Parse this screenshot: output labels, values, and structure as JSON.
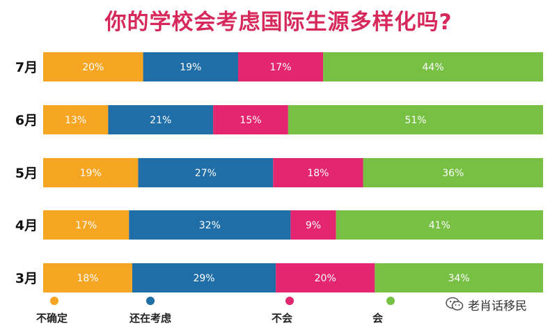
{
  "chart_data": {
    "type": "bar",
    "orientation": "horizontal",
    "stacked": true,
    "title": "你的学校会考虑国际生源多样化吗?",
    "categories": [
      "7月",
      "6月",
      "5月",
      "4月",
      "3月"
    ],
    "series": [
      {
        "name": "不确定",
        "color": "#f6a623",
        "values": [
          20,
          13,
          19,
          17,
          18
        ]
      },
      {
        "name": "还在考虑",
        "color": "#1f6ea8",
        "values": [
          19,
          21,
          27,
          32,
          29
        ]
      },
      {
        "name": "不会",
        "color": "#e3266f",
        "values": [
          17,
          15,
          18,
          9,
          20
        ]
      },
      {
        "name": "会",
        "color": "#77c043",
        "values": [
          44,
          51,
          36,
          41,
          34
        ]
      }
    ],
    "value_suffix": "%",
    "legend_position": "bottom",
    "grid": false
  },
  "watermark": {
    "text": "老肖话移民",
    "icon": "wechat-icon"
  }
}
